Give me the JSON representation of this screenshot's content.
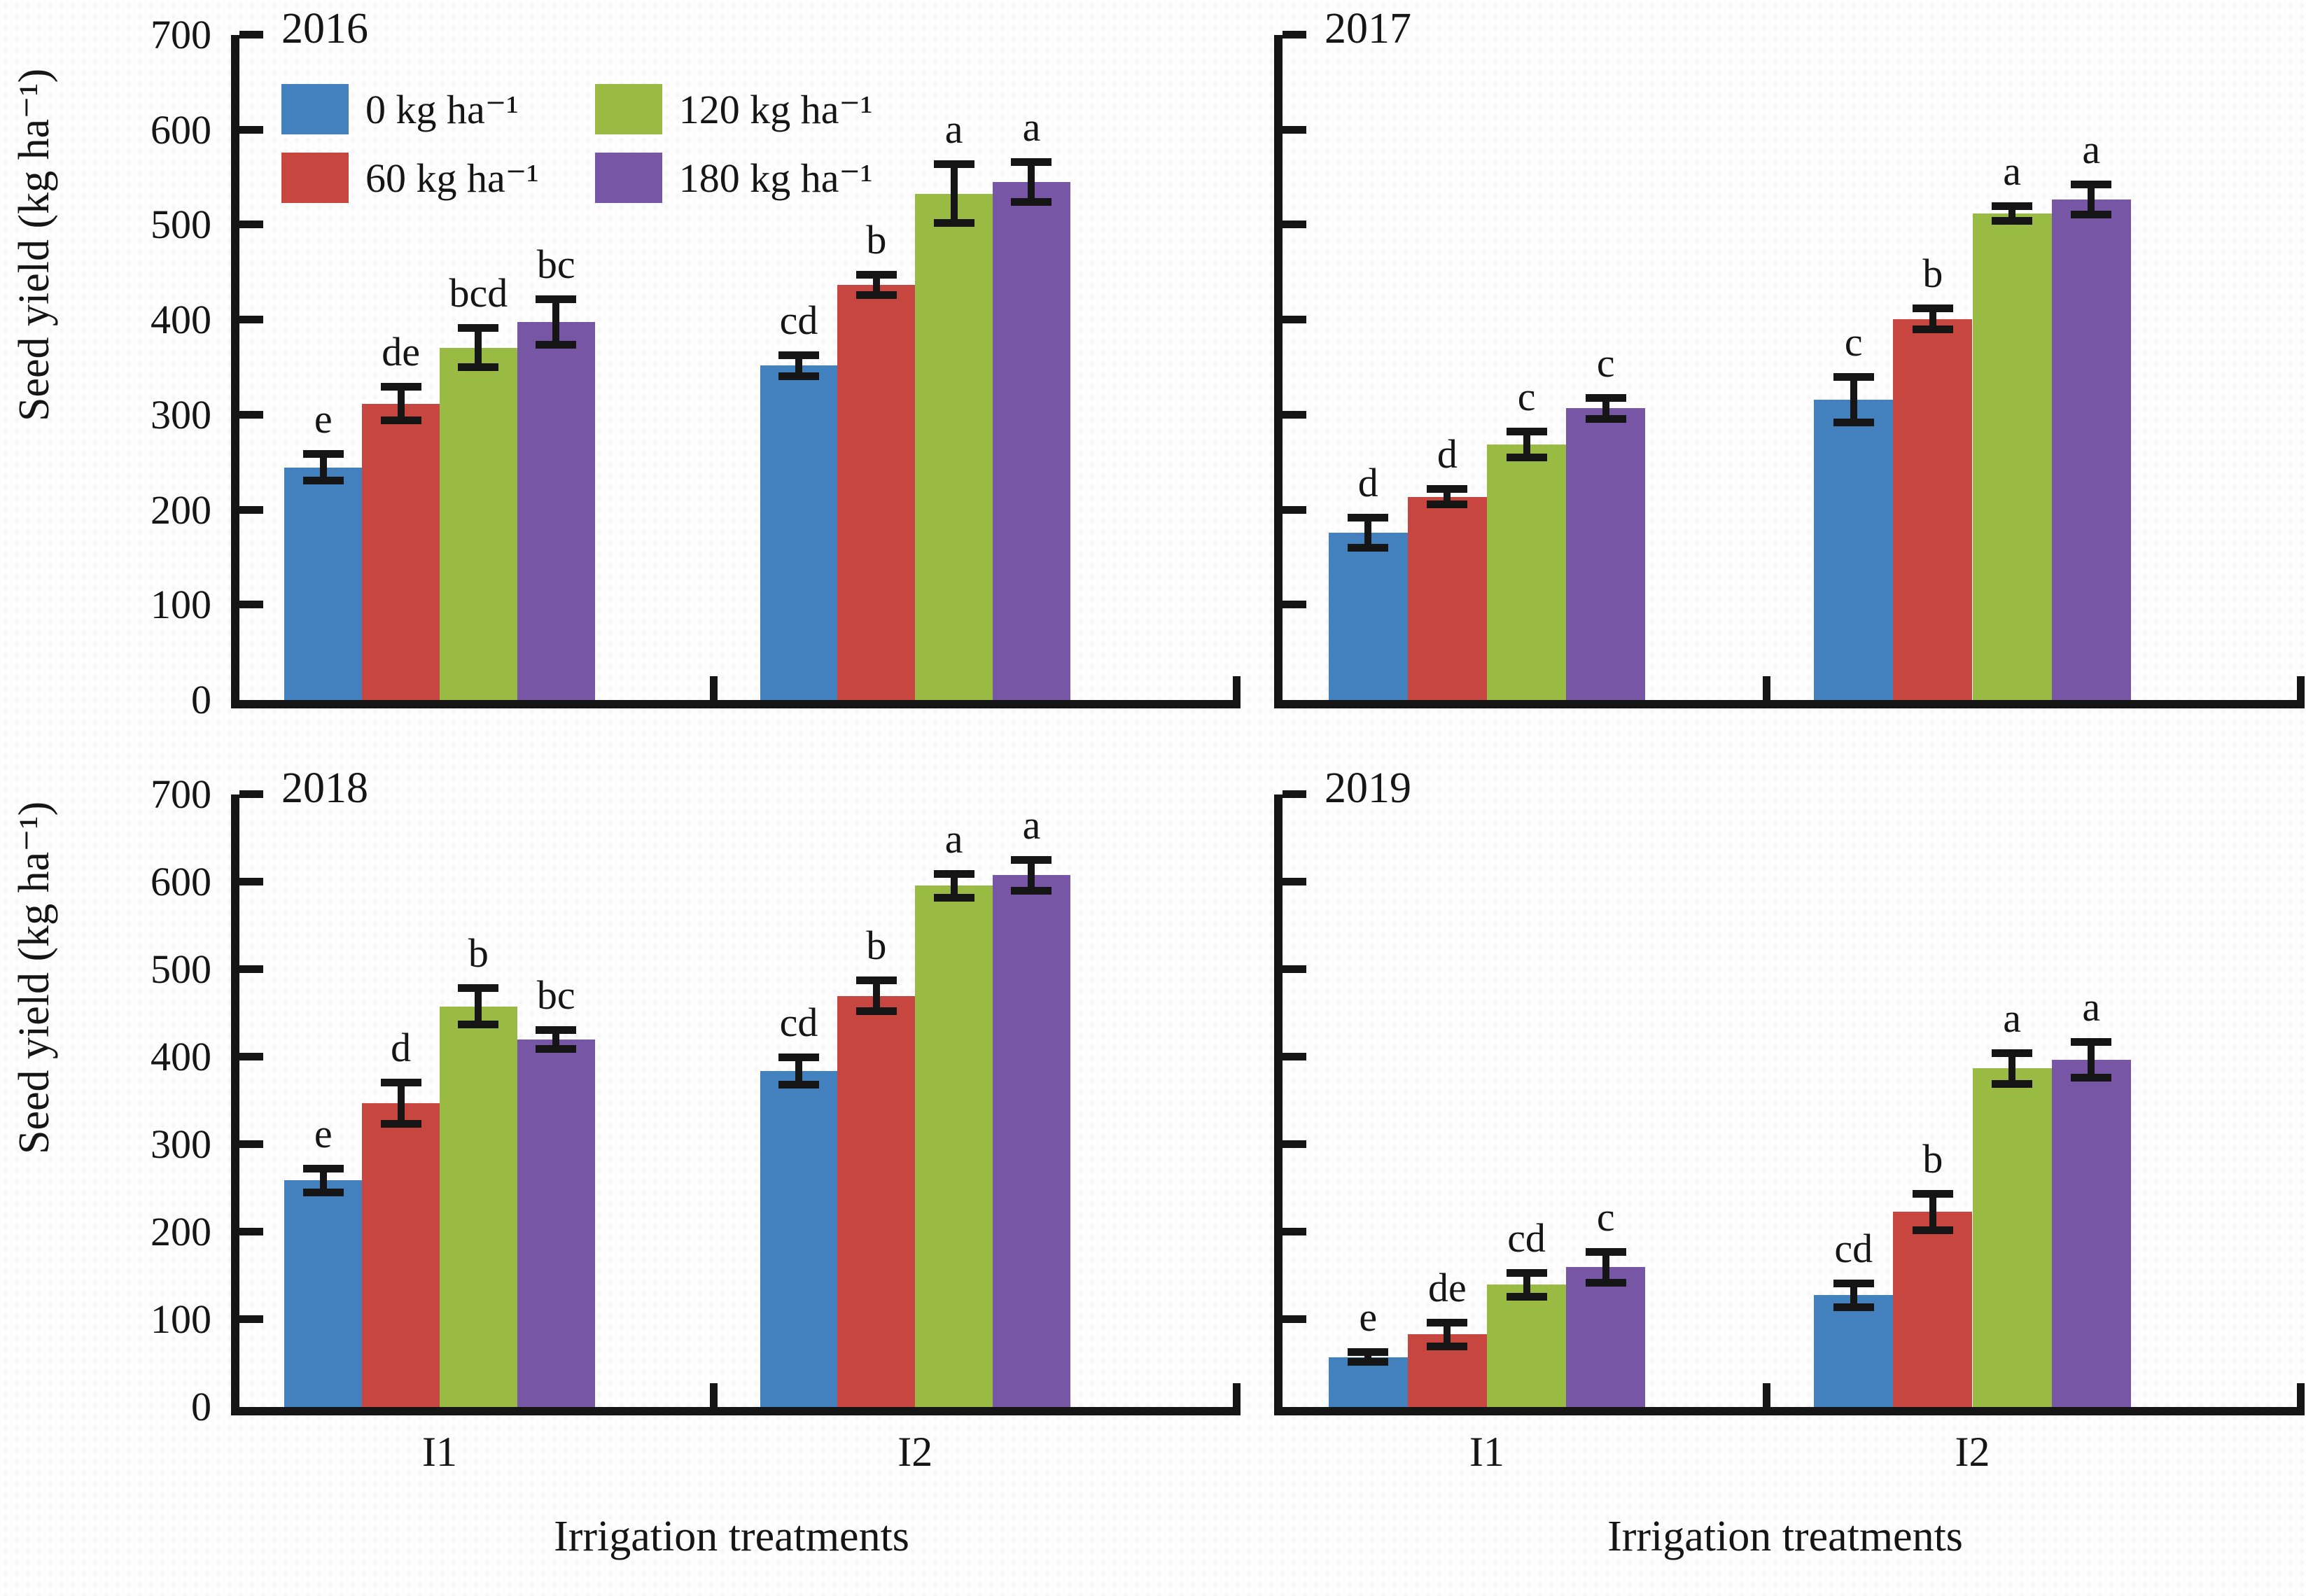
{
  "axes": {
    "y_label": "Seed yield (kg ha⁻¹)",
    "x_label": "Irrigation treatments",
    "y_ticks": [
      0,
      100,
      200,
      300,
      400,
      500,
      600,
      700
    ],
    "y_max": 700,
    "x_categories": [
      "I1",
      "I2"
    ]
  },
  "legend": {
    "items": [
      {
        "label": "0 kg ha⁻¹"
      },
      {
        "label": "60 kg ha⁻¹"
      },
      {
        "label": "120 kg ha⁻¹"
      },
      {
        "label": "180 kg ha⁻¹"
      }
    ]
  },
  "colors": {
    "series": [
      "#4380BE",
      "#C7463F",
      "#9ABB43",
      "#7757A5"
    ],
    "axis": "#151515"
  },
  "chart_data": [
    {
      "type": "bar",
      "title": "2016",
      "categories": [
        "I1",
        "I2"
      ],
      "ylim": [
        0,
        700
      ],
      "ylabel": "Seed yield (kg ha⁻¹)",
      "xlabel": "Irrigation treatments",
      "series": [
        {
          "name": "0 kg ha⁻¹",
          "values": [
            245,
            352
          ],
          "errors": [
            18,
            15
          ],
          "letters": [
            "e",
            "cd"
          ]
        },
        {
          "name": "60 kg ha⁻¹",
          "values": [
            312,
            437
          ],
          "errors": [
            22,
            15
          ],
          "letters": [
            "de",
            "b"
          ]
        },
        {
          "name": "120 kg ha⁻¹",
          "values": [
            371,
            533
          ],
          "errors": [
            25,
            35
          ],
          "letters": [
            "bcd",
            "a"
          ]
        },
        {
          "name": "180 kg ha⁻¹",
          "values": [
            398,
            545
          ],
          "errors": [
            28,
            25
          ],
          "letters": [
            "bc",
            "a"
          ]
        }
      ]
    },
    {
      "type": "bar",
      "title": "2017",
      "categories": [
        "I1",
        "I2"
      ],
      "ylim": [
        0,
        700
      ],
      "ylabel": "Seed yield (kg ha⁻¹)",
      "xlabel": "Irrigation treatments",
      "series": [
        {
          "name": "0 kg ha⁻¹",
          "values": [
            176,
            316
          ],
          "errors": [
            20,
            28
          ],
          "letters": [
            "d",
            "c"
          ]
        },
        {
          "name": "60 kg ha⁻¹",
          "values": [
            214,
            401
          ],
          "errors": [
            12,
            15
          ],
          "letters": [
            "d",
            "b"
          ]
        },
        {
          "name": "120 kg ha⁻¹",
          "values": [
            269,
            512
          ],
          "errors": [
            18,
            12
          ],
          "letters": [
            "c",
            "a"
          ]
        },
        {
          "name": "180 kg ha⁻¹",
          "values": [
            307,
            527
          ],
          "errors": [
            15,
            20
          ],
          "letters": [
            "c",
            "a"
          ]
        }
      ]
    },
    {
      "type": "bar",
      "title": "2018",
      "categories": [
        "I1",
        "I2"
      ],
      "ylim": [
        0,
        700
      ],
      "ylabel": "Seed yield (kg ha⁻¹)",
      "xlabel": "Irrigation treatments",
      "series": [
        {
          "name": "0 kg ha⁻¹",
          "values": [
            259,
            384
          ],
          "errors": [
            18,
            20
          ],
          "letters": [
            "e",
            "cd"
          ]
        },
        {
          "name": "60 kg ha⁻¹",
          "values": [
            347,
            470
          ],
          "errors": [
            28,
            22
          ],
          "letters": [
            "d",
            "b"
          ]
        },
        {
          "name": "120 kg ha⁻¹",
          "values": [
            458,
            596
          ],
          "errors": [
            25,
            18
          ],
          "letters": [
            "b",
            "a"
          ]
        },
        {
          "name": "180 kg ha⁻¹",
          "values": [
            420,
            608
          ],
          "errors": [
            15,
            22
          ],
          "letters": [
            "bc",
            "a"
          ]
        }
      ]
    },
    {
      "type": "bar",
      "title": "2019",
      "categories": [
        "I1",
        "I2"
      ],
      "ylim": [
        0,
        700
      ],
      "ylabel": "Seed yield (kg ha⁻¹)",
      "xlabel": "Irrigation treatments",
      "series": [
        {
          "name": "0 kg ha⁻¹",
          "values": [
            57,
            128
          ],
          "errors": [
            10,
            18
          ],
          "letters": [
            "e",
            "cd"
          ]
        },
        {
          "name": "60 kg ha⁻¹",
          "values": [
            83,
            223
          ],
          "errors": [
            18,
            25
          ],
          "letters": [
            "de",
            "b"
          ]
        },
        {
          "name": "120 kg ha⁻¹",
          "values": [
            140,
            387
          ],
          "errors": [
            18,
            22
          ],
          "letters": [
            "cd",
            "a"
          ]
        },
        {
          "name": "180 kg ha⁻¹",
          "values": [
            160,
            397
          ],
          "errors": [
            22,
            25
          ],
          "letters": [
            "c",
            "a"
          ]
        }
      ]
    }
  ]
}
